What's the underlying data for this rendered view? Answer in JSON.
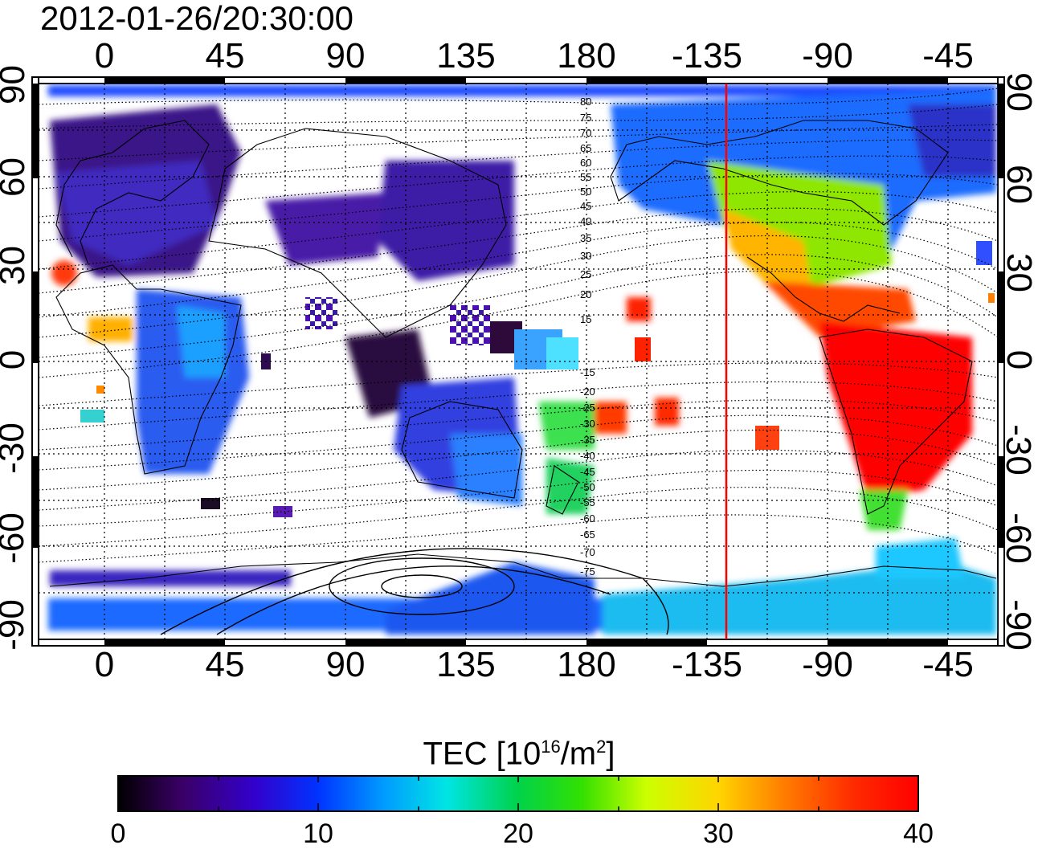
{
  "timestamp": "2012-01-26/20:30:00",
  "axes": {
    "top_lon_ticks": [
      "0",
      "45",
      "90",
      "135",
      "180",
      "-135",
      "-90",
      "-45"
    ],
    "bottom_lon_ticks": [
      "0",
      "45",
      "90",
      "135",
      "180",
      "-135",
      "-90",
      "-45"
    ],
    "left_lat_ticks": [
      "90",
      "60",
      "30",
      "0",
      "-30",
      "-60",
      "-90"
    ],
    "right_lat_ticks": [
      "90",
      "60",
      "30",
      "0",
      "-30",
      "-60",
      "-90"
    ]
  },
  "contour_labels": [
    "80",
    "75",
    "70",
    "65",
    "60",
    "55",
    "50",
    "45",
    "40",
    "35",
    "30",
    "25",
    "20",
    "15",
    "-15",
    "-20",
    "-25",
    "-30",
    "-35",
    "-40",
    "-45",
    "-50",
    "-55",
    "-60",
    "-65",
    "-70",
    "-75"
  ],
  "colorbar": {
    "title_main": "TEC  [10",
    "title_sup1": "16",
    "title_mid": "/m",
    "title_sup2": "2",
    "title_end": "]",
    "ticks": [
      "0",
      "10",
      "20",
      "30",
      "40"
    ],
    "min": 0,
    "max": 40,
    "stops": [
      "#000000",
      "#3a0066",
      "#3300cc",
      "#0033ff",
      "#0099ff",
      "#00e5e5",
      "#00d24a",
      "#33e000",
      "#ccff00",
      "#ffd500",
      "#ff7f00",
      "#ff2a00",
      "#ff0000"
    ]
  },
  "terminator": {
    "longitude": -128,
    "color": "#ff0000"
  }
}
